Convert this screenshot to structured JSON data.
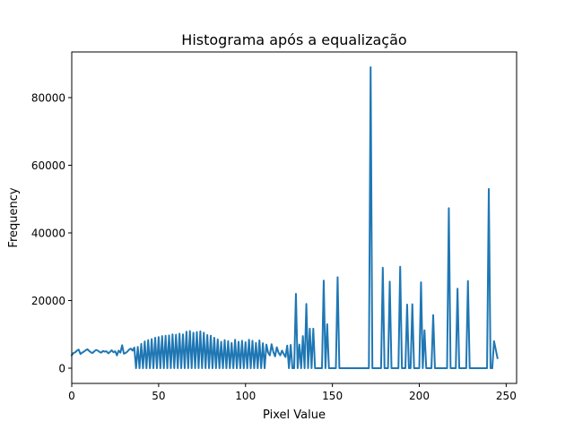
{
  "chart_data": {
    "type": "line",
    "title": "Histograma após a equalização",
    "xlabel": "Pixel Value",
    "ylabel": "Frequency",
    "xlim": [
      0,
      256
    ],
    "ylim": [
      -4500,
      93500
    ],
    "xticks": [
      0,
      50,
      100,
      150,
      200,
      250
    ],
    "yticks": [
      0,
      20000,
      40000,
      60000,
      80000
    ],
    "ytick_labels": [
      "0",
      "20000",
      "40000",
      "60000",
      "80000"
    ],
    "grid": false,
    "color": "#1f77b4",
    "series": [
      {
        "values": [
          3800,
          4500,
          4700,
          5200,
          5500,
          4200,
          4600,
          4900,
          5300,
          5600,
          5100,
          4700,
          4500,
          5000,
          5400,
          5200,
          4800,
          4600,
          5100,
          4900,
          5000,
          4400,
          4800,
          5300,
          4700,
          5000,
          3800,
          5200,
          4600,
          6800,
          4300,
          4500,
          4900,
          5500,
          5800,
          5200,
          6100,
          0,
          6300,
          0,
          7200,
          0,
          7900,
          0,
          8300,
          0,
          8600,
          0,
          9000,
          0,
          9200,
          0,
          9500,
          0,
          9600,
          0,
          9700,
          0,
          10000,
          0,
          9900,
          0,
          10200,
          0,
          10000,
          0,
          10800,
          0,
          11000,
          0,
          10500,
          0,
          10700,
          0,
          10900,
          0,
          10500,
          0,
          9800,
          0,
          9600,
          0,
          9000,
          0,
          8500,
          0,
          7800,
          0,
          8300,
          0,
          8000,
          0,
          7500,
          0,
          8400,
          0,
          7800,
          0,
          8100,
          0,
          7700,
          0,
          8400,
          0,
          8100,
          0,
          7500,
          0,
          8200,
          0,
          7400,
          0,
          7000,
          4600,
          3800,
          7100,
          4800,
          3500,
          6200,
          4600,
          3800,
          5200,
          4200,
          3300,
          6700,
          0,
          6900,
          0,
          0,
          22000,
          0,
          7000,
          0,
          9500,
          0,
          19000,
          0,
          11700,
          0,
          11700,
          0,
          0,
          0,
          0,
          0,
          25900,
          0,
          13000,
          0,
          0,
          0,
          0,
          0,
          26900,
          0,
          0,
          0,
          0,
          0,
          0,
          0,
          0,
          0,
          0,
          0,
          0,
          0,
          0,
          0,
          0,
          0,
          0,
          89000,
          0,
          0,
          0,
          0,
          0,
          0,
          29700,
          0,
          0,
          0,
          25600,
          0,
          0,
          0,
          0,
          0,
          30000,
          0,
          0,
          0,
          18800,
          0,
          0,
          18900,
          0,
          0,
          0,
          0,
          25400,
          0,
          11200,
          0,
          0,
          0,
          0,
          15700,
          0,
          0,
          0,
          0,
          0,
          0,
          0,
          0,
          47300,
          0,
          0,
          0,
          0,
          23500,
          0,
          0,
          0,
          0,
          0,
          25800,
          0,
          0,
          0,
          0,
          0,
          0,
          0,
          0,
          0,
          0,
          0,
          53000,
          0,
          0,
          8000,
          5500,
          3000
        ]
      }
    ]
  }
}
